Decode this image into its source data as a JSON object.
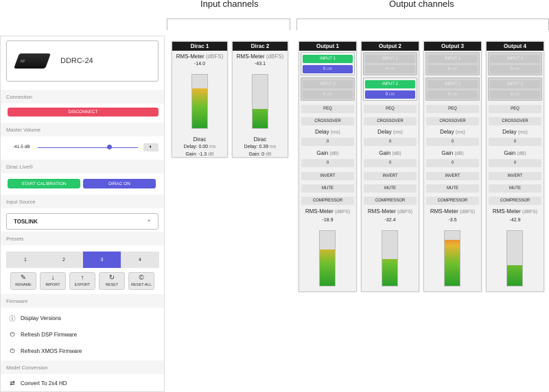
{
  "headers": {
    "input": "Input channels",
    "output": "Output channels"
  },
  "device": {
    "name": "DDRC-24"
  },
  "sections": {
    "connection": "Connection",
    "master_volume": "Master Volume",
    "dirac_live": "Dirac Live®",
    "input_source": "Input Source",
    "presets": "Presets",
    "firmware": "Firmware",
    "model_conversion": "Model Conversion"
  },
  "connection": {
    "disconnect": "DISCONNECT"
  },
  "volume": {
    "value": "-41.5 dB",
    "level": 0.71
  },
  "dirac": {
    "start": "START CALIBRATION",
    "toggle": "DIRAC ON"
  },
  "input_source": {
    "selected": "TOSLINK"
  },
  "presets": {
    "items": [
      "1",
      "2",
      "3",
      "4"
    ],
    "selected": "3"
  },
  "actions": [
    {
      "label": "RENAME",
      "icon": "edit-icon"
    },
    {
      "label": "IMPORT",
      "icon": "download-icon"
    },
    {
      "label": "EXPORT",
      "icon": "upload-icon"
    },
    {
      "label": "RESET",
      "icon": "refresh-icon"
    },
    {
      "label": "RESET-ALL",
      "icon": "copyright-icon"
    }
  ],
  "firmware": {
    "display_versions": "Display Versions",
    "refresh_dsp": "Refresh DSP Firmware",
    "refresh_xmos": "Refresh XMOS Firmware"
  },
  "model_conversion": {
    "convert": "Convert To 2x4 HD"
  },
  "inputs": [
    {
      "title": "Dirac 1",
      "meter_label": "RMS-Meter",
      "unit": "(dBFS)",
      "value": "-14.0",
      "level": 0.72,
      "dirac": "Dirac",
      "delay_label": "Delay:",
      "delay": "0.00",
      "delay_unit": "ms",
      "gain_label": "Gain:",
      "gain": "-1.3",
      "gain_unit": "dB"
    },
    {
      "title": "Dirac 2",
      "meter_label": "RMS-Meter",
      "unit": "(dBFS)",
      "value": "-43.1",
      "level": 0.35,
      "dirac": "Dirac",
      "delay_label": "Delay:",
      "delay": "0.39",
      "delay_unit": "ms",
      "gain_label": "Gain:",
      "gain": "0",
      "gain_unit": "dB"
    }
  ],
  "outputs": [
    {
      "title": "Output 1",
      "in1": "INPUT 1",
      "in1_val": "0",
      "in1_unit": "DB",
      "in2": "INPUT 2",
      "in2_val": "0",
      "in2_unit": "DB",
      "active": 1,
      "value": "-18.9",
      "level": 0.65
    },
    {
      "title": "Output 2",
      "in1": "INPUT 1",
      "in1_val": "0",
      "in1_unit": "DB",
      "in2": "INPUT 2",
      "in2_val": "0",
      "in2_unit": "DB",
      "active": 2,
      "value": "-32.4",
      "level": 0.48
    },
    {
      "title": "Output 3",
      "in1": "INPUT 1",
      "in1_val": "0",
      "in1_unit": "DB",
      "in2": "INPUT 2",
      "in2_val": "0",
      "in2_unit": "DB",
      "active": 0,
      "value": "-3.5",
      "level": 0.82
    },
    {
      "title": "Output 4",
      "in1": "INPUT 1",
      "in1_val": "0",
      "in1_unit": "DB",
      "in2": "INPUT 2",
      "in2_val": "0",
      "in2_unit": "DB",
      "active": 0,
      "value": "-42.9",
      "level": 0.36
    }
  ],
  "out_common": {
    "peq": "PEQ",
    "crossover": "CROSSOVER",
    "delay": "Delay",
    "delay_unit": "(ms)",
    "delay_val": "0",
    "gain": "Gain",
    "gain_unit": "(dB)",
    "gain_val": "0",
    "invert": "INVERT",
    "mute": "MUTE",
    "compressor": "COMPRESSOR",
    "meter": "RMS-Meter",
    "meter_unit": "(dBFS)"
  },
  "colors": {
    "accent": "#5b5bdb",
    "danger": "#ec4862",
    "success": "#27c76a"
  }
}
